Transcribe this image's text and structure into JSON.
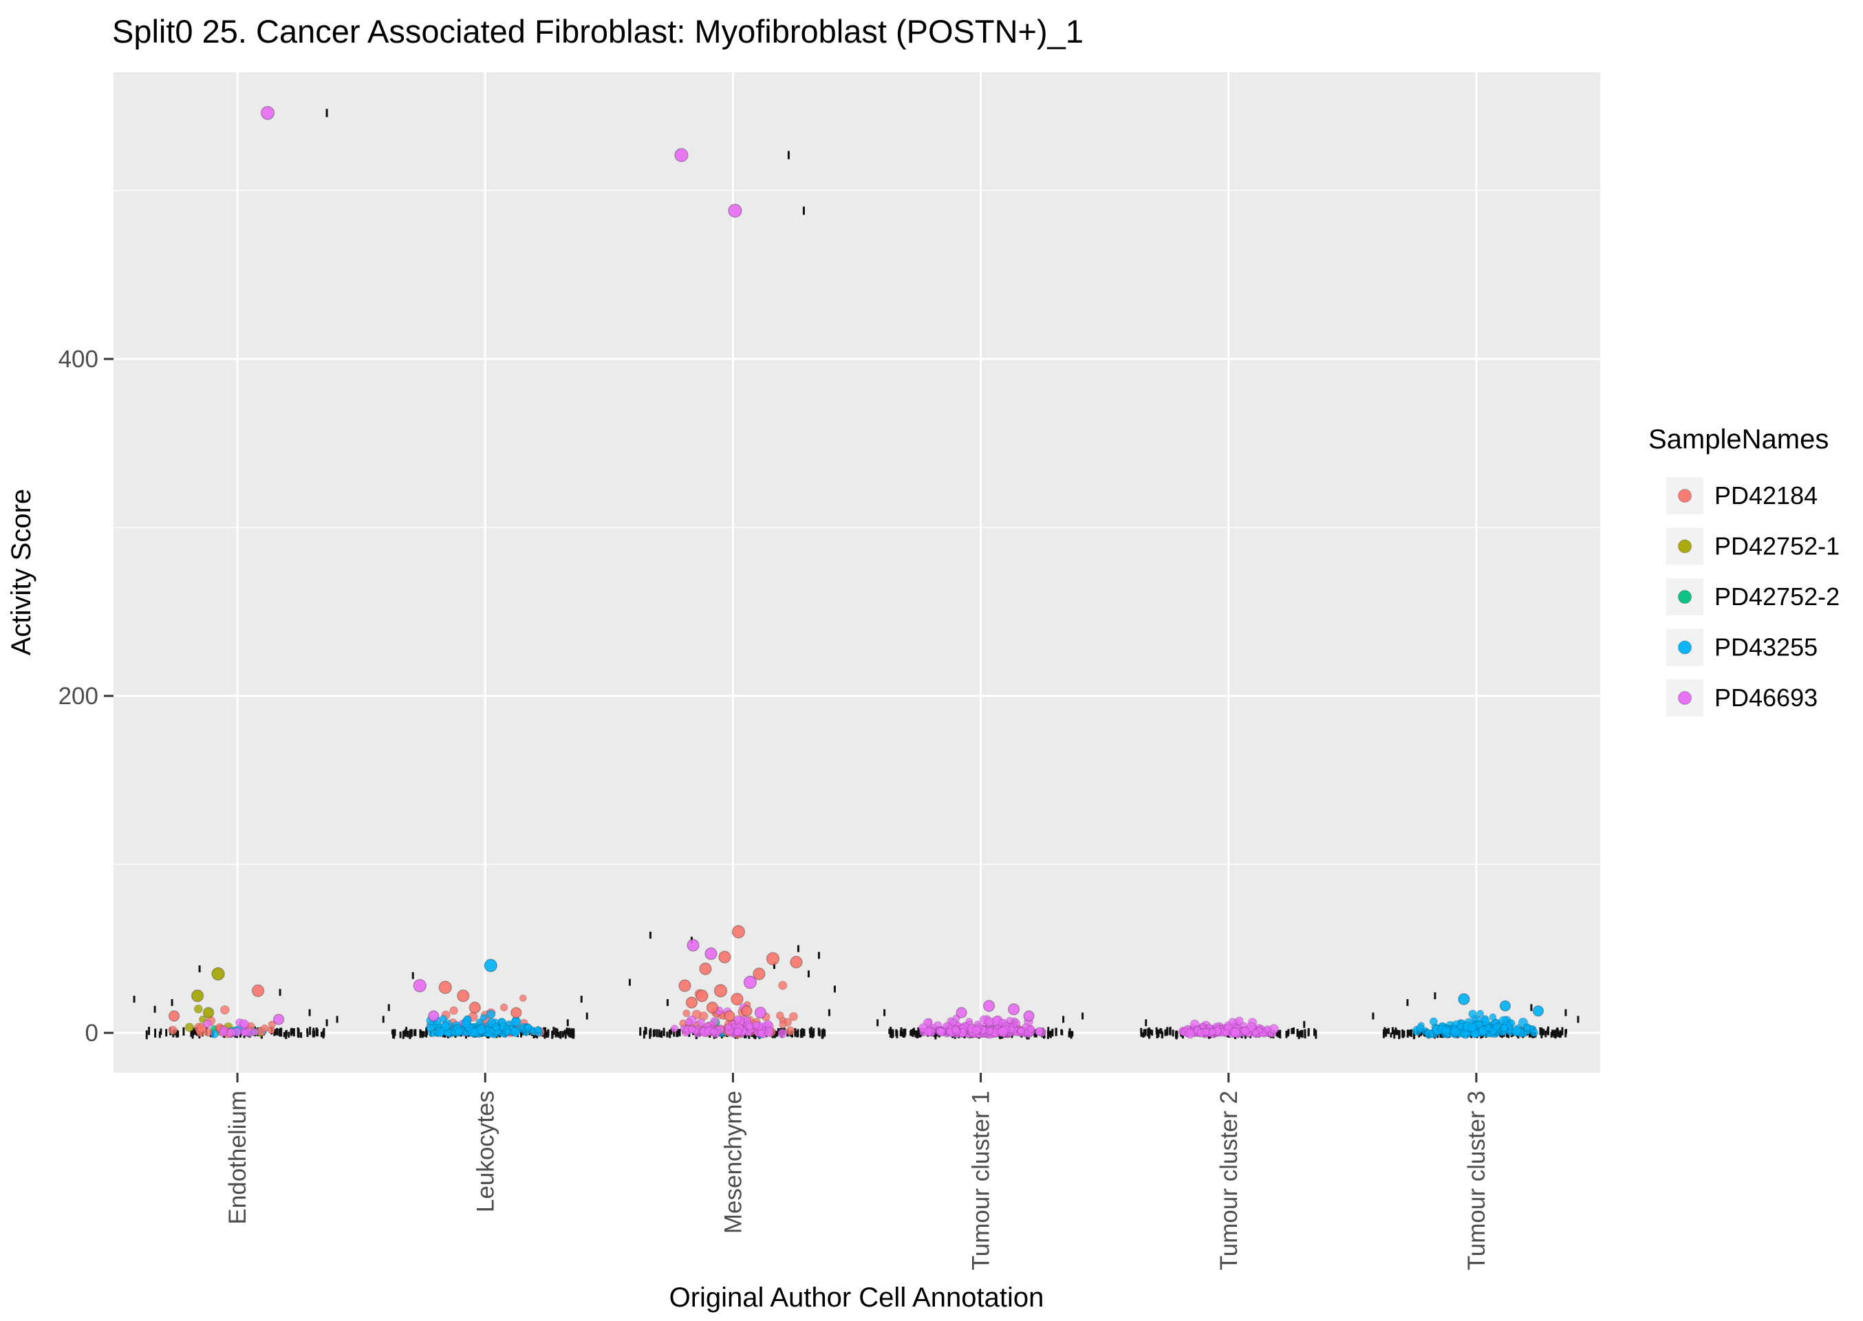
{
  "chart_data": {
    "type": "scatter",
    "title": "Split0 25. Cancer Associated Fibroblast: Myofibroblast (POSTN+)_1",
    "xlabel": "Original Author Cell Annotation",
    "ylabel": "Activity Score",
    "legend_title": "SampleNames",
    "categories": [
      "Endothelium",
      "Leukocytes",
      "Mesenchyme",
      "Tumour cluster 1",
      "Tumour cluster 2",
      "Tumour cluster 3"
    ],
    "yticks": [
      0,
      200,
      400
    ],
    "yticks_minor": [
      100,
      300,
      500
    ],
    "ylim": [
      -24,
      572
    ],
    "grid": "on",
    "legend_position": "right",
    "samples": [
      {
        "name": "PD42184",
        "color": "#F8766D"
      },
      {
        "name": "PD42752-1",
        "color": "#A3A500"
      },
      {
        "name": "PD42752-2",
        "color": "#00BF7D"
      },
      {
        "name": "PD43255",
        "color": "#00B0F6"
      },
      {
        "name": "PD46693",
        "color": "#E76BF3"
      }
    ],
    "style": {
      "panel_bg": "#EBEBEB",
      "grid_color": "#FFFFFF",
      "tick_color": "#333333",
      "tick_label_color": "#4D4D4D",
      "rug_color": "#111111",
      "key_bg": "#F2F2F2"
    },
    "cluster_summary": [
      {
        "c": 0,
        "rug_n": 90,
        "rug_spread": 135,
        "rug_high": [
          [
            38,
            -55
          ],
          [
            24,
            62
          ],
          [
            20,
            -150
          ],
          [
            18,
            -95
          ],
          [
            14,
            -120
          ],
          [
            12,
            105
          ],
          [
            8,
            145
          ],
          [
            6,
            130
          ]
        ],
        "groups": [
          {
            "s": 2,
            "n": 4,
            "scale": 1.2,
            "spread": 70
          },
          {
            "s": 1,
            "n": 7,
            "scale": 3.0,
            "spread": 80
          },
          {
            "s": 3,
            "n": 6,
            "scale": 1.5,
            "spread": 90
          },
          {
            "s": 0,
            "n": 20,
            "scale": 3.5,
            "spread": 95
          },
          {
            "s": 4,
            "n": 12,
            "scale": 2.0,
            "spread": 90
          }
        ]
      },
      {
        "c": 1,
        "rug_n": 150,
        "rug_spread": 135,
        "rug_high": [
          [
            34,
            -105
          ],
          [
            20,
            140
          ],
          [
            15,
            -140
          ],
          [
            10,
            148
          ],
          [
            8,
            -148
          ],
          [
            6,
            120
          ]
        ],
        "groups": [
          {
            "s": 1,
            "n": 4,
            "scale": 1.5,
            "spread": 70
          },
          {
            "s": 2,
            "n": 4,
            "scale": 1.5,
            "spread": 70
          },
          {
            "s": 0,
            "n": 30,
            "scale": 4.0,
            "spread": 100
          },
          {
            "s": 4,
            "n": 10,
            "scale": 2.0,
            "spread": 85
          },
          {
            "s": 3,
            "n": 130,
            "scale": 2.2,
            "spread": 88
          }
        ]
      },
      {
        "c": 2,
        "rug_n": 130,
        "rug_spread": 135,
        "rug_high": [
          [
            58,
            -120
          ],
          [
            55,
            -60
          ],
          [
            50,
            95
          ],
          [
            46,
            125
          ],
          [
            40,
            60
          ],
          [
            35,
            110
          ],
          [
            30,
            -150
          ],
          [
            26,
            148
          ],
          [
            18,
            -95
          ],
          [
            12,
            140
          ]
        ],
        "groups": [
          {
            "s": 1,
            "n": 3,
            "scale": 1.5,
            "spread": 60
          },
          {
            "s": 2,
            "n": 3,
            "scale": 2.0,
            "spread": 60
          },
          {
            "s": 3,
            "n": 8,
            "scale": 1.5,
            "spread": 85
          },
          {
            "s": 0,
            "n": 55,
            "scale": 6.0,
            "spread": 95
          },
          {
            "s": 4,
            "n": 70,
            "scale": 3.0,
            "spread": 95
          }
        ]
      },
      {
        "c": 3,
        "rug_n": 160,
        "rug_spread": 135,
        "rug_high": [
          [
            12,
            -140
          ],
          [
            10,
            148
          ],
          [
            8,
            120
          ],
          [
            6,
            -150
          ]
        ],
        "groups": [
          {
            "s": 0,
            "n": 6,
            "scale": 2.0,
            "spread": 85
          },
          {
            "s": 4,
            "n": 220,
            "scale": 2.0,
            "spread": 100
          }
        ]
      },
      {
        "c": 4,
        "rug_n": 110,
        "rug_spread": 130,
        "rug_high": [
          [
            6,
            -120
          ],
          [
            5,
            110
          ]
        ],
        "groups": [
          {
            "s": 4,
            "n": 130,
            "scale": 1.3,
            "spread": 85
          }
        ]
      },
      {
        "c": 5,
        "rug_n": 150,
        "rug_spread": 135,
        "rug_high": [
          [
            22,
            -60
          ],
          [
            18,
            -100
          ],
          [
            15,
            80
          ],
          [
            12,
            130
          ],
          [
            10,
            -150
          ],
          [
            8,
            148
          ]
        ],
        "groups": [
          {
            "s": 4,
            "n": 4,
            "scale": 1.5,
            "spread": 60
          },
          {
            "s": 3,
            "n": 170,
            "scale": 2.2,
            "spread": 95
          }
        ]
      }
    ],
    "rug_outliers": [
      {
        "c": 0,
        "v": 546,
        "dx": 130
      },
      {
        "c": 2,
        "v": 521,
        "dx": 81
      },
      {
        "c": 2,
        "v": 488,
        "dx": 103
      }
    ],
    "outlier_points": [
      [
        0,
        4,
        546,
        44,
        9.5
      ],
      [
        0,
        1,
        35,
        -28,
        9
      ],
      [
        0,
        1,
        22,
        -58,
        8.5
      ],
      [
        0,
        0,
        25,
        30,
        8.5
      ],
      [
        0,
        1,
        12,
        -42,
        7.5
      ],
      [
        0,
        0,
        10,
        -92,
        7.5
      ],
      [
        0,
        4,
        8,
        60,
        7.5
      ],
      [
        1,
        3,
        40,
        8,
        9
      ],
      [
        1,
        4,
        28,
        -95,
        9
      ],
      [
        1,
        0,
        27,
        -58,
        9
      ],
      [
        1,
        0,
        22,
        -32,
        8.5
      ],
      [
        1,
        0,
        15,
        -15,
        8
      ],
      [
        1,
        0,
        12,
        45,
        7.5
      ],
      [
        1,
        4,
        10,
        -75,
        7.5
      ],
      [
        2,
        4,
        521,
        -75,
        9.5
      ],
      [
        2,
        4,
        488,
        3,
        9.5
      ],
      [
        2,
        0,
        60,
        8,
        9
      ],
      [
        2,
        4,
        52,
        -58,
        8.5
      ],
      [
        2,
        4,
        47,
        -32,
        8.5
      ],
      [
        2,
        0,
        45,
        -12,
        8.5
      ],
      [
        2,
        0,
        44,
        58,
        9
      ],
      [
        2,
        0,
        42,
        92,
        8.5
      ],
      [
        2,
        0,
        38,
        -40,
        8.5
      ],
      [
        2,
        0,
        35,
        38,
        8.5
      ],
      [
        2,
        4,
        30,
        25,
        9
      ],
      [
        2,
        0,
        28,
        -70,
        8.5
      ],
      [
        2,
        0,
        25,
        -18,
        9
      ],
      [
        2,
        0,
        22,
        -45,
        8.5
      ],
      [
        2,
        0,
        20,
        6,
        8.5
      ],
      [
        2,
        0,
        18,
        -60,
        8
      ],
      [
        2,
        0,
        15,
        -30,
        8
      ],
      [
        2,
        4,
        12,
        40,
        8
      ],
      [
        2,
        0,
        13,
        20,
        7.5
      ],
      [
        2,
        0,
        10,
        -5,
        7.5
      ],
      [
        3,
        4,
        16,
        12,
        8
      ],
      [
        3,
        4,
        14,
        48,
        8
      ],
      [
        3,
        4,
        12,
        -28,
        7.5
      ],
      [
        3,
        4,
        10,
        70,
        7.5
      ],
      [
        5,
        3,
        20,
        -18,
        8
      ],
      [
        5,
        3,
        16,
        42,
        7.5
      ],
      [
        5,
        3,
        13,
        90,
        7.5
      ]
    ]
  }
}
